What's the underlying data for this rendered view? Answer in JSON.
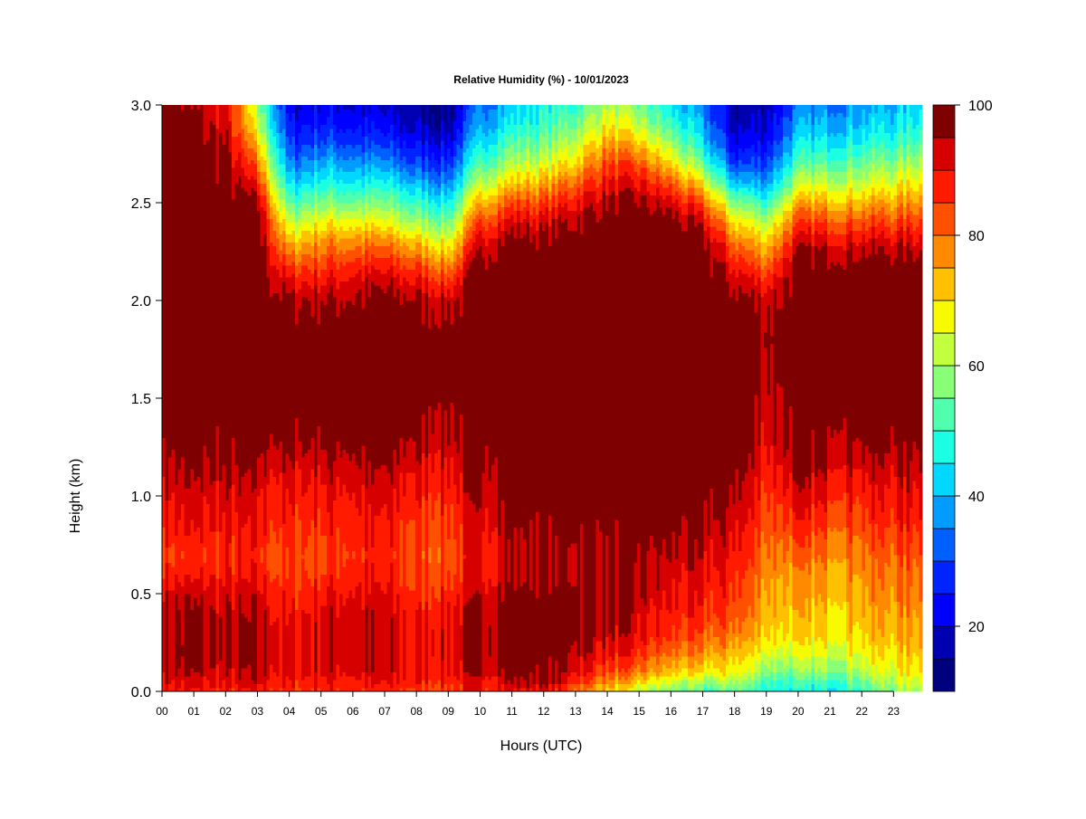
{
  "chart_data": {
    "type": "heatmap",
    "title": "Relative Humidity (%) - 10/01/2023",
    "xlabel": "Hours (UTC)",
    "ylabel": "Height (km)",
    "xlim": [
      0,
      23.9
    ],
    "ylim": [
      0,
      3.0
    ],
    "x_ticks": [
      "00",
      "01",
      "02",
      "03",
      "04",
      "05",
      "06",
      "07",
      "08",
      "09",
      "10",
      "11",
      "12",
      "13",
      "14",
      "15",
      "16",
      "17",
      "18",
      "19",
      "20",
      "21",
      "22",
      "23"
    ],
    "y_ticks": [
      "0.0",
      "0.5",
      "1.0",
      "1.5",
      "2.0",
      "2.5",
      "3.0"
    ],
    "colorbar": {
      "range": [
        10,
        100
      ],
      "step": 5,
      "ticks": [
        20,
        40,
        60,
        80,
        100
      ],
      "colors": [
        "#00007f",
        "#0000b2",
        "#0000ff",
        "#0024ff",
        "#0060ff",
        "#009cff",
        "#00d8ff",
        "#1bffe3",
        "#50ffad",
        "#88ff76",
        "#c2ff3c",
        "#f8fb00",
        "#ffc000",
        "#ff8a00",
        "#ff5000",
        "#ff1a00",
        "#d70000",
        "#7f0000"
      ]
    },
    "height_levels_km": [
      0.0,
      0.05,
      0.1,
      0.2,
      0.3,
      0.4,
      0.5,
      0.6,
      0.7,
      0.8,
      0.9,
      1.0,
      1.1,
      1.2,
      1.3,
      1.5,
      1.8,
      2.0,
      2.1,
      2.2,
      2.3,
      2.4,
      2.5,
      2.6,
      2.7,
      2.8,
      2.9,
      3.0
    ],
    "hours_utc": [
      0,
      1,
      2,
      3,
      4,
      5,
      6,
      7,
      8,
      9,
      10,
      11,
      12,
      13,
      14,
      15,
      16,
      17,
      18,
      19,
      20,
      21,
      22,
      23,
      23.9
    ],
    "rh_percent": [
      [
        90,
        88,
        86,
        88,
        85,
        87,
        86,
        86,
        85,
        85,
        88,
        90,
        90,
        80,
        70,
        62,
        56,
        50,
        54,
        48,
        45,
        46,
        50,
        58,
        62
      ],
      [
        92,
        91,
        90,
        92,
        88,
        90,
        89,
        89,
        88,
        88,
        90,
        94,
        96,
        88,
        78,
        70,
        64,
        58,
        62,
        52,
        50,
        52,
        56,
        62,
        66
      ],
      [
        94,
        94,
        92,
        94,
        90,
        92,
        92,
        92,
        90,
        90,
        94,
        98,
        98,
        92,
        84,
        78,
        72,
        68,
        68,
        58,
        56,
        58,
        62,
        66,
        70
      ],
      [
        96,
        97,
        94,
        96,
        90,
        93,
        94,
        93,
        90,
        92,
        96,
        100,
        100,
        96,
        90,
        86,
        80,
        76,
        74,
        66,
        64,
        66,
        68,
        70,
        74
      ],
      [
        96,
        96,
        94,
        96,
        90,
        93,
        94,
        93,
        90,
        92,
        96,
        100,
        100,
        98,
        94,
        90,
        86,
        82,
        80,
        72,
        70,
        70,
        72,
        74,
        76
      ],
      [
        95,
        95,
        93,
        94,
        88,
        92,
        93,
        92,
        88,
        90,
        95,
        100,
        100,
        98,
        96,
        92,
        88,
        86,
        84,
        74,
        72,
        72,
        74,
        76,
        78
      ],
      [
        93,
        93,
        92,
        92,
        86,
        90,
        91,
        90,
        86,
        88,
        93,
        98,
        99,
        98,
        96,
        94,
        90,
        88,
        86,
        76,
        74,
        74,
        76,
        78,
        80
      ],
      [
        88,
        88,
        88,
        88,
        84,
        86,
        88,
        88,
        84,
        84,
        90,
        94,
        96,
        96,
        96,
        95,
        92,
        90,
        88,
        78,
        76,
        76,
        78,
        80,
        82
      ],
      [
        86,
        86,
        87,
        86,
        84,
        85,
        86,
        87,
        83,
        83,
        90,
        94,
        96,
        96,
        97,
        96,
        94,
        92,
        90,
        80,
        80,
        79,
        80,
        82,
        84
      ],
      [
        88,
        88,
        88,
        88,
        85,
        86,
        88,
        88,
        84,
        84,
        91,
        96,
        97,
        98,
        98,
        98,
        96,
        94,
        92,
        82,
        84,
        82,
        83,
        85,
        87
      ],
      [
        90,
        90,
        90,
        89,
        87,
        88,
        89,
        89,
        86,
        86,
        92,
        98,
        99,
        99,
        99,
        99,
        98,
        96,
        94,
        84,
        88,
        86,
        86,
        88,
        90
      ],
      [
        92,
        92,
        92,
        91,
        89,
        90,
        91,
        91,
        88,
        88,
        94,
        99,
        100,
        100,
        100,
        100,
        100,
        98,
        96,
        86,
        91,
        89,
        88,
        90,
        92
      ],
      [
        94,
        94,
        94,
        93,
        90,
        92,
        93,
        93,
        90,
        90,
        96,
        100,
        100,
        100,
        100,
        100,
        100,
        99,
        98,
        88,
        94,
        92,
        91,
        92,
        94
      ],
      [
        97,
        96,
        96,
        96,
        94,
        95,
        96,
        96,
        93,
        92,
        98,
        100,
        100,
        100,
        100,
        100,
        100,
        100,
        99,
        90,
        97,
        96,
        95,
        95,
        96
      ],
      [
        99,
        98,
        98,
        98,
        97,
        98,
        98,
        98,
        96,
        95,
        99,
        100,
        100,
        100,
        100,
        100,
        100,
        100,
        100,
        92,
        99,
        98,
        98,
        98,
        99
      ],
      [
        100,
        100,
        100,
        100,
        100,
        100,
        100,
        100,
        100,
        98,
        100,
        100,
        100,
        100,
        100,
        100,
        100,
        100,
        100,
        94,
        100,
        100,
        100,
        100,
        100
      ],
      [
        100,
        100,
        100,
        100,
        100,
        100,
        100,
        100,
        100,
        100,
        100,
        100,
        100,
        100,
        100,
        100,
        100,
        100,
        100,
        97,
        100,
        100,
        100,
        100,
        100
      ],
      [
        100,
        100,
        100,
        100,
        96,
        96,
        96,
        97,
        96,
        94,
        100,
        100,
        100,
        100,
        100,
        100,
        100,
        100,
        98,
        94,
        100,
        100,
        100,
        100,
        100
      ],
      [
        100,
        100,
        100,
        100,
        90,
        90,
        92,
        93,
        90,
        86,
        100,
        100,
        100,
        100,
        100,
        100,
        100,
        100,
        94,
        88,
        100,
        100,
        100,
        100,
        100
      ],
      [
        100,
        100,
        100,
        100,
        82,
        84,
        86,
        86,
        82,
        76,
        98,
        100,
        100,
        100,
        100,
        100,
        100,
        100,
        88,
        80,
        98,
        98,
        98,
        98,
        98
      ],
      [
        100,
        100,
        100,
        100,
        72,
        78,
        78,
        78,
        72,
        66,
        92,
        98,
        98,
        100,
        100,
        100,
        100,
        98,
        80,
        72,
        92,
        92,
        92,
        92,
        92
      ],
      [
        100,
        100,
        100,
        100,
        62,
        68,
        68,
        66,
        60,
        56,
        84,
        92,
        92,
        96,
        100,
        100,
        98,
        92,
        70,
        62,
        84,
        84,
        84,
        84,
        86
      ],
      [
        100,
        100,
        100,
        96,
        52,
        58,
        56,
        56,
        50,
        46,
        74,
        84,
        84,
        90,
        96,
        96,
        92,
        82,
        58,
        50,
        74,
        74,
        74,
        76,
        78
      ],
      [
        100,
        100,
        98,
        88,
        42,
        48,
        46,
        46,
        40,
        36,
        62,
        72,
        74,
        82,
        90,
        90,
        82,
        68,
        42,
        38,
        62,
        64,
        64,
        66,
        70
      ],
      [
        100,
        100,
        96,
        80,
        34,
        40,
        38,
        36,
        30,
        28,
        52,
        62,
        64,
        72,
        84,
        82,
        70,
        54,
        30,
        30,
        52,
        54,
        56,
        58,
        62
      ],
      [
        100,
        98,
        95,
        72,
        28,
        32,
        30,
        28,
        24,
        22,
        44,
        54,
        56,
        64,
        76,
        72,
        60,
        44,
        22,
        24,
        44,
        46,
        48,
        50,
        54
      ],
      [
        100,
        96,
        92,
        64,
        24,
        26,
        24,
        22,
        18,
        16,
        38,
        46,
        50,
        56,
        68,
        62,
        50,
        38,
        18,
        20,
        38,
        40,
        42,
        44,
        48
      ],
      [
        100,
        94,
        90,
        60,
        20,
        22,
        20,
        18,
        16,
        14,
        34,
        42,
        46,
        50,
        62,
        56,
        44,
        34,
        16,
        18,
        34,
        36,
        38,
        40,
        44
      ]
    ]
  }
}
